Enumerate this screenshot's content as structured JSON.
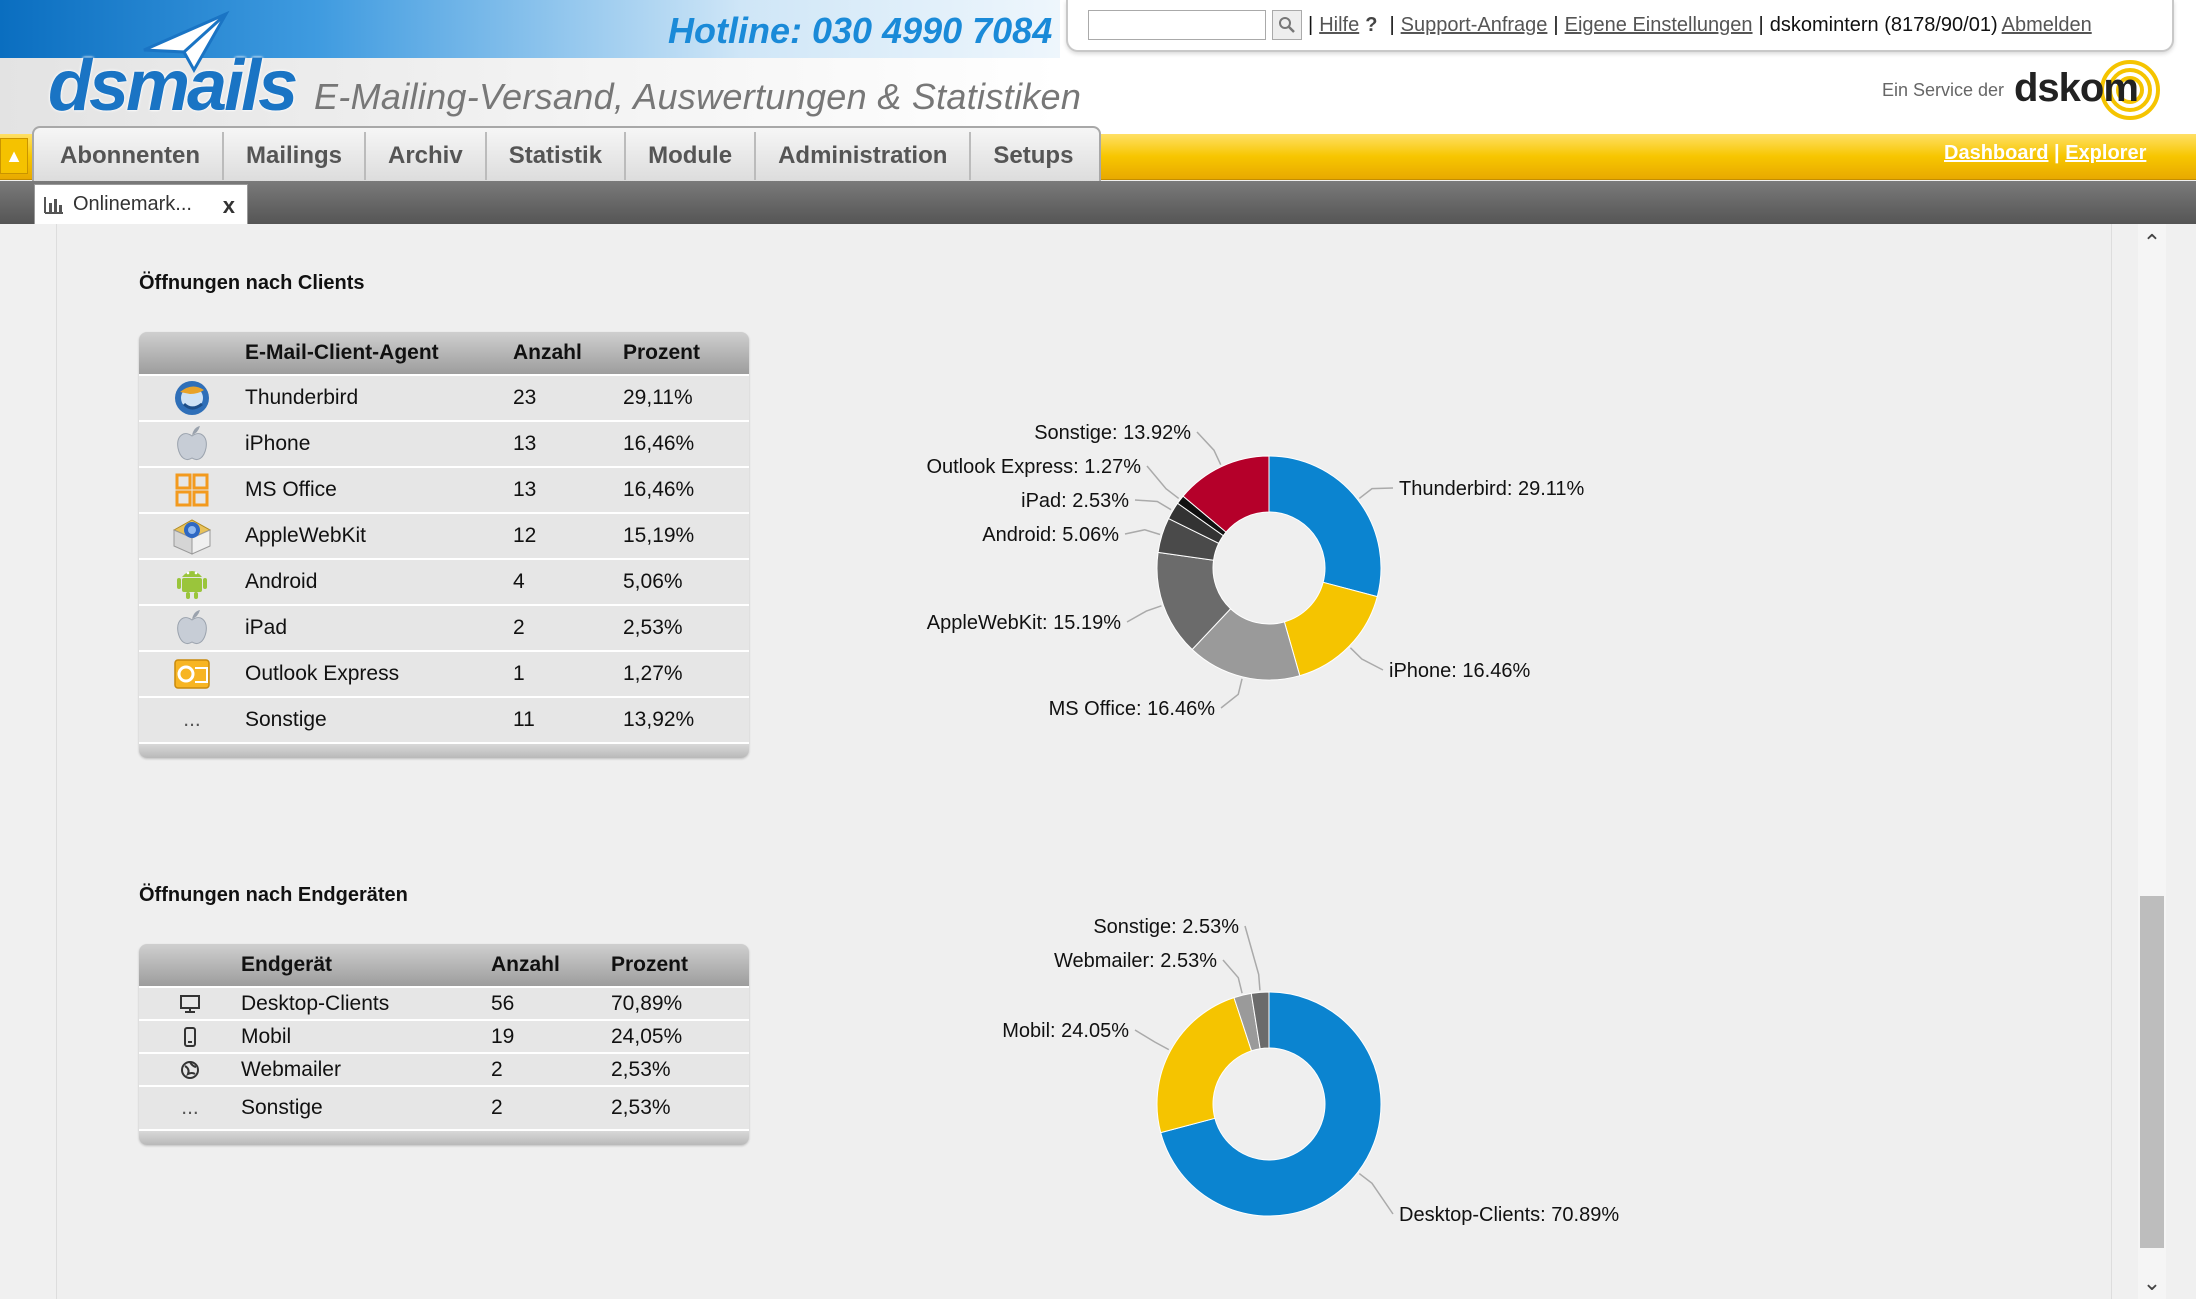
{
  "header": {
    "logo": "dsmails",
    "hotline": "Hotline:  030 4990 7084",
    "tagline": "E-Mailing-Versand, Auswertungen & Statistiken",
    "search": {
      "value": "",
      "placeholder": ""
    },
    "links": {
      "hilfe": "Hilfe",
      "question": "?",
      "support": "Support-Anfrage",
      "settings": "Eigene Einstellungen",
      "user": "dskomintern (8178/90/01)",
      "logout": "Abmelden",
      "separator": "|"
    },
    "service_label": "Ein Service der",
    "service_brand": "dskom"
  },
  "nav": {
    "toggle_glyph": "▲",
    "tabs": [
      {
        "label": "Abonnenten"
      },
      {
        "label": "Mailings"
      },
      {
        "label": "Archiv"
      },
      {
        "label": "Statistik"
      },
      {
        "label": "Module"
      },
      {
        "label": "Administration"
      },
      {
        "label": "Setups"
      }
    ],
    "right": {
      "dashboard": "Dashboard",
      "separator": "|",
      "explorer": "Explorer"
    }
  },
  "doc_tab": {
    "label": "Onlinemark...",
    "close": "x",
    "icon": "bar-chart-icon"
  },
  "clients": {
    "title": "Öffnungen nach Clients",
    "columns": [
      "",
      "E-Mail-Client-Agent",
      "Anzahl",
      "Prozent"
    ],
    "rows": [
      {
        "icon": "thunderbird-icon",
        "name": "Thunderbird",
        "count": "23",
        "percent": "29,11%"
      },
      {
        "icon": "apple-icon",
        "name": "iPhone",
        "count": "13",
        "percent": "16,46%"
      },
      {
        "icon": "ms-office-icon",
        "name": "MS Office",
        "count": "13",
        "percent": "16,46%"
      },
      {
        "icon": "applewebkit-icon",
        "name": "AppleWebKit",
        "count": "12",
        "percent": "15,19%"
      },
      {
        "icon": "android-icon",
        "name": "Android",
        "count": "4",
        "percent": "5,06%"
      },
      {
        "icon": "apple-icon",
        "name": "iPad",
        "count": "2",
        "percent": "2,53%"
      },
      {
        "icon": "outlook-icon",
        "name": "Outlook Express",
        "count": "1",
        "percent": "1,27%"
      },
      {
        "icon": "ellipsis-icon",
        "name": "Sonstige",
        "count": "11",
        "percent": "13,92%"
      }
    ],
    "ellipsis": "..."
  },
  "devices": {
    "title": "Öffnungen nach Endgeräten",
    "columns": [
      "",
      "Endgerät",
      "Anzahl",
      "Prozent"
    ],
    "rows": [
      {
        "icon": "monitor-icon",
        "name": "Desktop-Clients",
        "count": "56",
        "percent": "70,89%"
      },
      {
        "icon": "mobile-icon",
        "name": "Mobil",
        "count": "19",
        "percent": "24,05%"
      },
      {
        "icon": "globe-icon",
        "name": "Webmailer",
        "count": "2",
        "percent": "2,53%"
      },
      {
        "icon": "ellipsis-icon",
        "name": "Sonstige",
        "count": "2",
        "percent": "2,53%"
      }
    ],
    "ellipsis": "..."
  },
  "chart_data": [
    {
      "type": "pie",
      "donut": true,
      "categories": [
        "Thunderbird",
        "iPhone",
        "MS Office",
        "AppleWebKit",
        "Android",
        "iPad",
        "Outlook Express",
        "Sonstige"
      ],
      "values": [
        29.11,
        16.46,
        16.46,
        15.19,
        5.06,
        2.53,
        1.27,
        13.92
      ],
      "labels": [
        "Thunderbird: 29.11%",
        "iPhone: 16.46%",
        "MS Office: 16.46%",
        "AppleWebKit: 15.19%",
        "Android: 5.06%",
        "iPad: 2.53%",
        "Outlook Express: 1.27%",
        "Sonstige: 13.92%"
      ],
      "colors": [
        "#0b84d0",
        "#f5c400",
        "#9a9a9a",
        "#6b6b6b",
        "#4a4a4a",
        "#333333",
        "#111111",
        "#b5002a"
      ]
    },
    {
      "type": "pie",
      "donut": true,
      "categories": [
        "Desktop-Clients",
        "Mobil",
        "Webmailer",
        "Sonstige"
      ],
      "values": [
        70.89,
        24.05,
        2.53,
        2.53
      ],
      "labels": [
        "Desktop-Clients: 70.89%",
        "Mobil: 24.05%",
        "Webmailer: 2.53%",
        "Sonstige: 2.53%"
      ],
      "colors": [
        "#0b84d0",
        "#f5c400",
        "#9a9a9a",
        "#6b6b6b"
      ]
    }
  ]
}
